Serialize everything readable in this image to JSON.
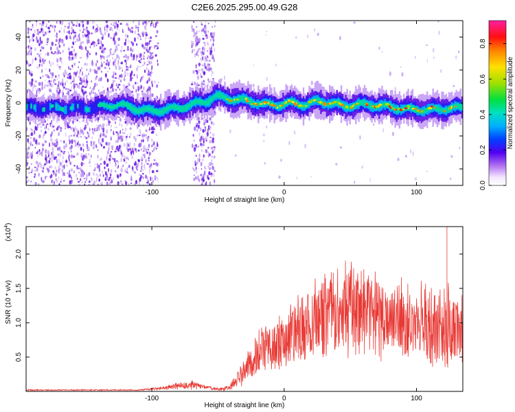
{
  "chart_data": [
    {
      "type": "heatmap",
      "title": "C2E6.2025.295.00.49.G28",
      "xlabel": "Height of straight line (km)",
      "ylabel": "Frequency (Hz)",
      "xlim": [
        -195,
        135
      ],
      "ylim": [
        -50,
        50
      ],
      "xticks": [
        -100,
        0,
        100
      ],
      "xtick_labels": [
        "-100",
        "0",
        "100"
      ],
      "yticks": [
        -40,
        -20,
        0,
        20,
        40
      ],
      "ytick_labels": [
        "-40",
        "-20",
        "0",
        "20",
        "40"
      ],
      "ridge": {
        "x": [
          -195,
          -150,
          -125,
          -110,
          -100,
          -90,
          -80,
          -70,
          -60,
          -52,
          -45,
          -35,
          -25,
          -15,
          -5,
          5,
          15,
          25,
          35,
          45,
          55,
          65,
          75,
          85,
          95,
          105,
          115,
          125,
          135
        ],
        "freq": [
          -3,
          -3,
          -1,
          -4,
          -5,
          -4,
          -3,
          -1,
          1,
          4,
          3,
          2,
          1,
          -1,
          -1,
          0,
          -1,
          1,
          0,
          -2,
          -1,
          -1,
          -2,
          -3,
          -4,
          -4,
          -4,
          -3,
          -3
        ]
      },
      "colorbar": {
        "label": "Normalized spectral amplitude",
        "range": [
          0.0,
          0.93
        ],
        "ticks": [
          0.0,
          0.2,
          0.4,
          0.6,
          0.8
        ],
        "tick_labels": [
          "0.0",
          "0.2",
          "0.4",
          "0.6",
          "0.8"
        ]
      }
    },
    {
      "type": "line",
      "xlabel": "Height of straight line (km)",
      "ylabel": "SNR (10 * v/v)",
      "multiplier_label": "(x10",
      "multiplier_exp": "4",
      "multiplier_close": ")",
      "xlim": [
        -195,
        135
      ],
      "ylim": [
        0,
        2.4
      ],
      "xticks": [
        -100,
        0,
        100
      ],
      "xtick_labels": [
        "-100",
        "0",
        "100"
      ],
      "yticks": [
        0.5,
        1.0,
        1.5,
        2.0
      ],
      "ytick_labels": [
        "0.5",
        "1.0",
        "1.5",
        "2.0"
      ],
      "color": "#e83a35",
      "series": [
        {
          "name": "SNR",
          "envelope": {
            "x": [
              -195,
              -110,
              -90,
              -80,
              -70,
              -60,
              -50,
              -42,
              -38,
              -30,
              -20,
              -10,
              0,
              10,
              20,
              30,
              40,
              50,
              60,
              70,
              80,
              90,
              100,
              110,
              120,
              130,
              135
            ],
            "mean": [
              0.02,
              0.02,
              0.05,
              0.08,
              0.1,
              0.06,
              0.03,
              0.05,
              0.12,
              0.3,
              0.55,
              0.65,
              0.75,
              0.85,
              1.0,
              1.1,
              1.15,
              1.2,
              1.15,
              1.1,
              1.05,
              1.05,
              1.0,
              0.95,
              0.95,
              0.9,
              0.9
            ],
            "spread": [
              0.01,
              0.01,
              0.03,
              0.06,
              0.08,
              0.04,
              0.02,
              0.05,
              0.1,
              0.25,
              0.35,
              0.45,
              0.55,
              0.6,
              0.65,
              0.7,
              0.75,
              0.8,
              0.75,
              0.7,
              0.65,
              0.65,
              0.65,
              0.7,
              0.7,
              0.65,
              0.6
            ]
          },
          "peak": {
            "x": 123,
            "y": 2.45
          }
        }
      ]
    }
  ]
}
